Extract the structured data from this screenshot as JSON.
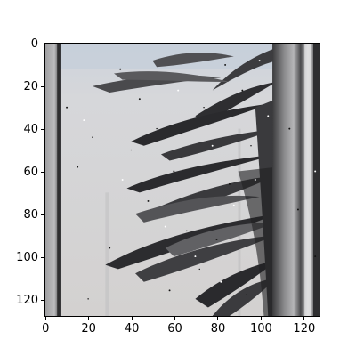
{
  "image": {
    "description_free": true,
    "colormap": "grayscale",
    "dominant_colors": [
      "#d9d9dc",
      "#2b2b2e",
      "#6f6f72",
      "#9d9da0",
      "#c9d1db"
    ]
  },
  "axes": {
    "x_ticks": [
      "0",
      "20",
      "40",
      "60",
      "80",
      "100",
      "120"
    ],
    "y_ticks": [
      "0",
      "20",
      "40",
      "60",
      "80",
      "100",
      "120"
    ],
    "xlim": [
      -0.5,
      127.5
    ],
    "ylim": [
      127.5,
      -0.5
    ],
    "y_inverted": true
  }
}
